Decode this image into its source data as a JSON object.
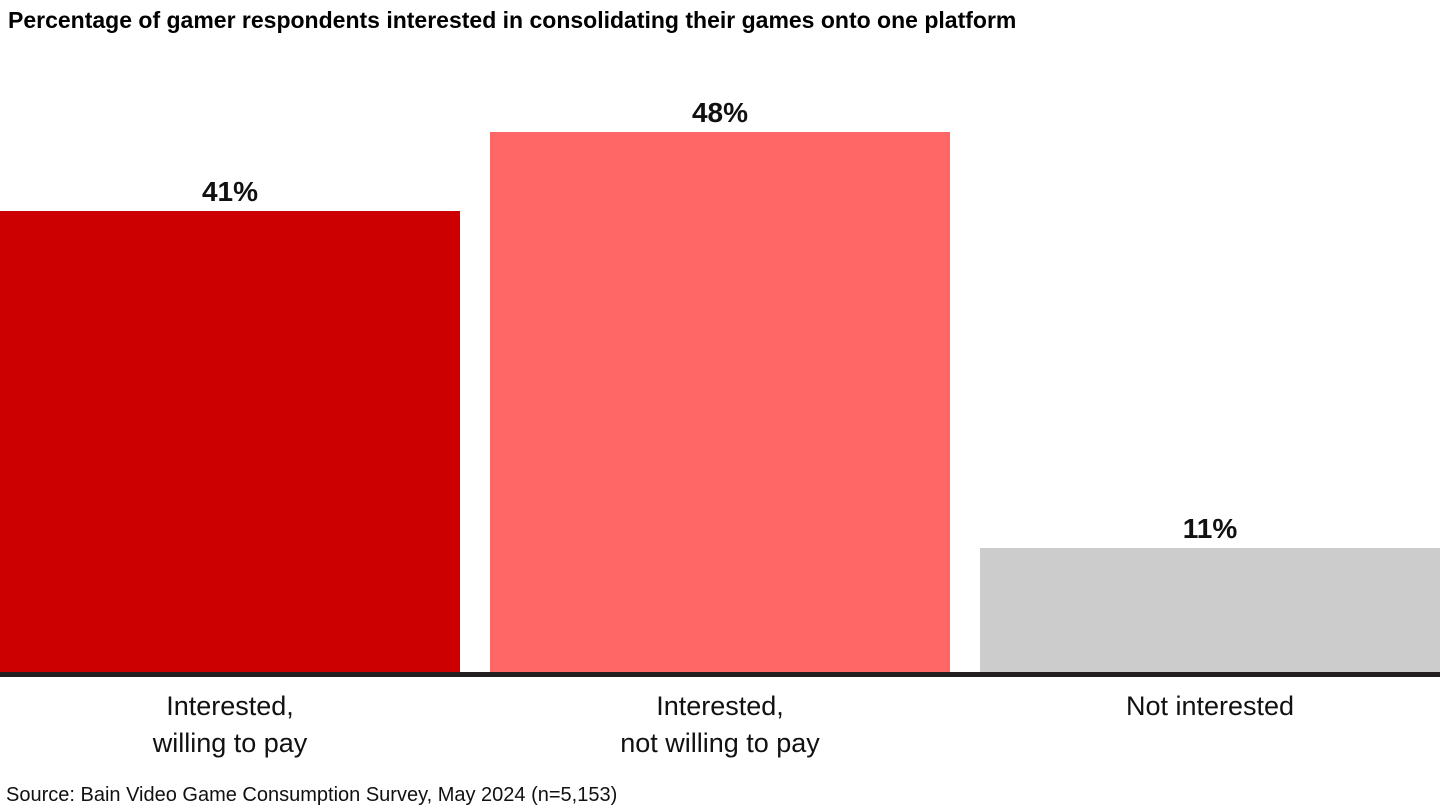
{
  "chart_data": {
    "type": "bar",
    "title": "Percentage of gamer respondents interested in consolidating their games onto one platform",
    "categories": [
      "Interested,\nwilling to pay",
      "Interested,\nnot willing to pay",
      "Not interested"
    ],
    "values": [
      41,
      48,
      11
    ],
    "value_labels": [
      "41%",
      "48%",
      "11%"
    ],
    "bar_colors": [
      "#cc0000",
      "#ff6666",
      "#cccccc"
    ],
    "unit": "%",
    "ylim": [
      0,
      48
    ],
    "xlabel": "",
    "ylabel": "",
    "grid": false,
    "legend": "none",
    "axis_line_color": "#231f20"
  },
  "source_note": "Source: Bain Video Game Consumption Survey, May 2024 (n=5,153)"
}
